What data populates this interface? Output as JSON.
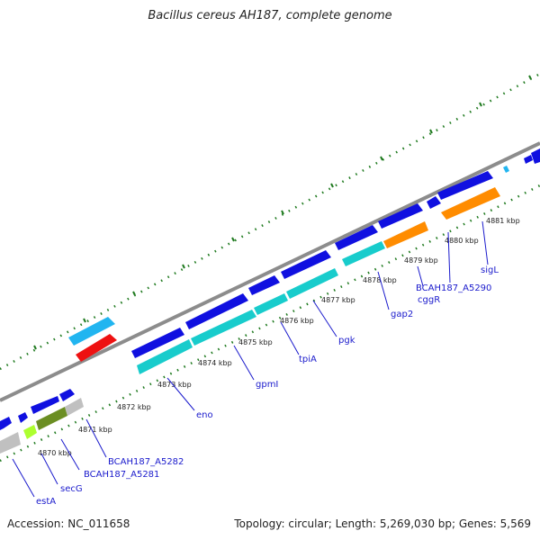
{
  "title": "Bacillus cereus AH187, complete genome",
  "footer": {
    "accession": "Accession: NC_011658",
    "topology": "Topology: circular; Length: 5,269,030 bp; Genes: 5,569"
  },
  "colors": {
    "backbone": "#8c8c8c",
    "ticks": "#1f7a1f",
    "cds_forward": "#1010e0",
    "cds_reverse_cyan": "#18cccc",
    "orange": "#ff8c00",
    "grey": "#c0c0c0",
    "olive": "#6b8e23",
    "lime": "#adff2f",
    "sky": "#21b5f0",
    "red": "#ee1111"
  },
  "scale_labels": [
    "4870 kbp",
    "4871 kbp",
    "4872 kbp",
    "4873 kbp",
    "4874 kbp",
    "4875 kbp",
    "4876 kbp",
    "4877 kbp",
    "4878 kbp",
    "4879 kbp",
    "4880 kbp",
    "4881 kbp"
  ],
  "gene_labels": [
    "estA",
    "secG",
    "BCAH187_A5281",
    "BCAH187_A5282",
    "eno",
    "gpmI",
    "tpiA",
    "pgk",
    "gap2",
    "cggR",
    "BCAH187_A5290",
    "sigL"
  ]
}
